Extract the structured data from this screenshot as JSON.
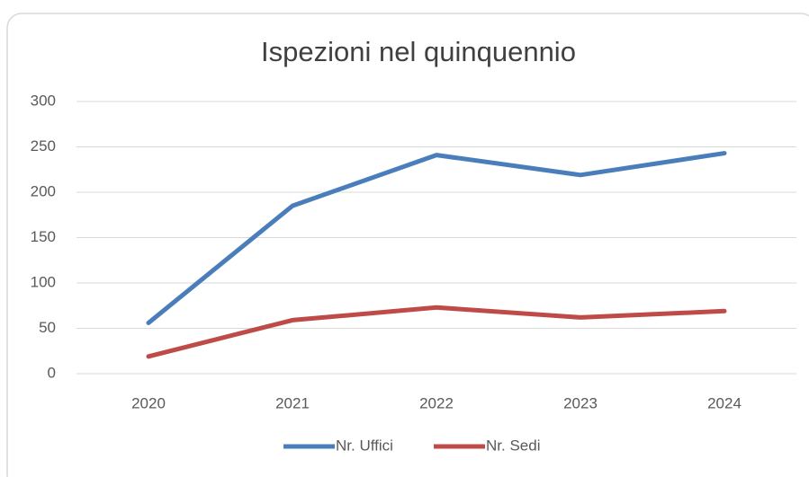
{
  "chart_data": {
    "type": "line",
    "title": "Ispezioni nel quinquennio",
    "categories": [
      "2020",
      "2021",
      "2022",
      "2023",
      "2024"
    ],
    "series": [
      {
        "name": "Nr. Uffici",
        "color": "#4a7ebb",
        "values": [
          56,
          185,
          241,
          219,
          243
        ]
      },
      {
        "name": "Nr. Sedi",
        "color": "#be4b48",
        "values": [
          19,
          59,
          73,
          62,
          69
        ]
      }
    ],
    "ylim": [
      0,
      300
    ],
    "yticks": [
      0,
      50,
      100,
      150,
      200,
      250,
      300
    ],
    "grid": true,
    "legend": "bottom"
  }
}
